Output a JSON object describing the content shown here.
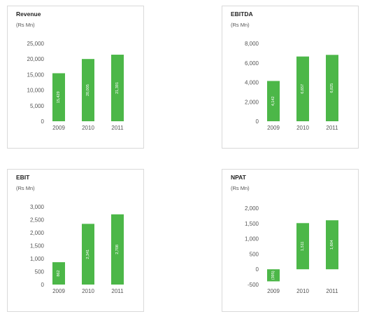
{
  "chart_data": [
    {
      "type": "bar",
      "title": "Revenue",
      "unit": "(Rs Mn)",
      "categories": [
        "2009",
        "2010",
        "2011"
      ],
      "values": [
        15429,
        20005,
        21391
      ],
      "data_labels": [
        "15,429",
        "20,005",
        "21,391"
      ],
      "yticks": [
        0,
        5000,
        10000,
        15000,
        20000,
        25000
      ],
      "ytick_labels": [
        "0",
        "5,000",
        "10,000",
        "15,000",
        "20,000",
        "25,000"
      ],
      "ylim": [
        0,
        25000
      ],
      "bar_color": "#4cb748"
    },
    {
      "type": "bar",
      "title": "EBITDA",
      "unit": "(Rs Mn)",
      "categories": [
        "2009",
        "2010",
        "2011"
      ],
      "values": [
        4142,
        6657,
        6825
      ],
      "data_labels": [
        "4,142",
        "6,657",
        "6,825"
      ],
      "yticks": [
        0,
        2000,
        4000,
        6000,
        8000
      ],
      "ytick_labels": [
        "0",
        "2,000",
        "4,000",
        "6,000",
        "8,000"
      ],
      "ylim": [
        0,
        8000
      ],
      "bar_color": "#4cb748"
    },
    {
      "type": "bar",
      "title": "EBIT",
      "unit": "(Rs Mn)",
      "categories": [
        "2009",
        "2010",
        "2011"
      ],
      "values": [
        862,
        2341,
        2708
      ],
      "data_labels": [
        "862",
        "2,341",
        "2,708"
      ],
      "yticks": [
        0,
        500,
        1000,
        1500,
        2000,
        2500,
        3000
      ],
      "ytick_labels": [
        "0",
        "500",
        "1,000",
        "1,500",
        "2,000",
        "2,500",
        "3,000"
      ],
      "ylim": [
        0,
        3000
      ],
      "bar_color": "#4cb748"
    },
    {
      "type": "bar",
      "title": "NPAT",
      "unit": "(Rs Mn)",
      "categories": [
        "2009",
        "2010",
        "2011"
      ],
      "values": [
        -395,
        1511,
        1604
      ],
      "data_labels": [
        "(395)",
        "1,511",
        "1,604"
      ],
      "yticks": [
        -500,
        0,
        500,
        1000,
        1500,
        2000
      ],
      "ytick_labels": [
        "-500",
        "0",
        "500",
        "1,000",
        "1,500",
        "2,000"
      ],
      "ylim": [
        -500,
        2000
      ],
      "bar_color": "#4cb748"
    }
  ]
}
